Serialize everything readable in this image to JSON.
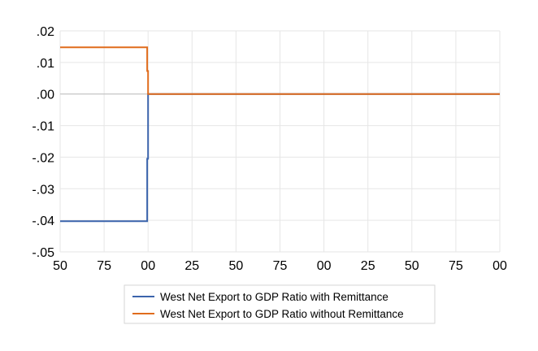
{
  "chart_data": {
    "type": "line",
    "line_style": "step",
    "title": "",
    "xlabel": "",
    "ylabel": "",
    "x_tick_labels": [
      "50",
      "75",
      "00",
      "25",
      "50",
      "75",
      "00",
      "25",
      "50",
      "75",
      "00"
    ],
    "x_domain": [
      1950,
      2200
    ],
    "ylim": [
      -0.05,
      0.02
    ],
    "y_ticks": [
      0.02,
      0.01,
      0.0,
      -0.01,
      -0.02,
      -0.03,
      -0.04,
      -0.05
    ],
    "y_tick_labels": [
      ".02",
      ".01",
      ".00",
      "-.01",
      "-.02",
      "-.03",
      "-.04",
      "-.05"
    ],
    "grid": true,
    "legend_position": "bottom-center",
    "series": [
      {
        "name": "West Net Export to GDP Ratio with Remittance",
        "color": "#3b64ac",
        "x": [
          1950,
          1999.5,
          1999.5,
          2000,
          2000,
          2200
        ],
        "y": [
          -0.0403,
          -0.0403,
          -0.0205,
          -0.0205,
          0.0,
          0.0
        ]
      },
      {
        "name": "West Net Export to GDP Ratio without Remittance",
        "color": "#e06c1c",
        "x": [
          1950,
          1999.5,
          1999.5,
          2000,
          2000,
          2200
        ],
        "y": [
          0.0148,
          0.0148,
          0.0073,
          0.0073,
          0.0,
          0.0
        ]
      }
    ]
  }
}
